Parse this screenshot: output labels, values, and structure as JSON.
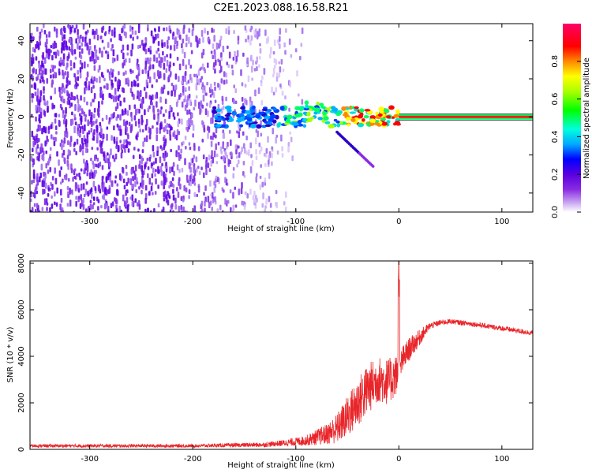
{
  "title": "C2E1.2023.088.16.58.R21",
  "chart_data": [
    {
      "type": "heatmap",
      "xlabel": "Height of straight line (km)",
      "ylabel": "Frequency (Hz)",
      "xlim": [
        -358,
        130
      ],
      "ylim": [
        -50,
        49
      ],
      "xticks": [
        -300,
        -200,
        -100,
        0,
        100
      ],
      "yticks": [
        -40,
        -20,
        0,
        20,
        40
      ],
      "colorbar": {
        "label": "Normalized spectral amplitude",
        "range": [
          0.0,
          1.0
        ],
        "ticks": [
          "0.0",
          "0.2",
          "0.4",
          "0.6",
          "0.8"
        ],
        "colors": [
          "#ffffff",
          "#c9a6f2",
          "#8a2be2",
          "#5a00e0",
          "#0000ff",
          "#00aaff",
          "#00ffdd",
          "#00ff00",
          "#aaff00",
          "#ffff00",
          "#ff8800",
          "#ff0000",
          "#ff0066"
        ]
      },
      "features": {
        "noise_region_x": [
          -358,
          -100
        ],
        "sparse_noise_x": [
          -100,
          -95
        ],
        "signal_start_x": -180,
        "signal_line_x": [
          0,
          130
        ],
        "signal_line_freq": 0,
        "tail": {
          "x": [
            -60,
            -25
          ],
          "freq": [
            -8,
            -26
          ]
        }
      }
    },
    {
      "type": "line",
      "xlabel": "Height of straight line (km)",
      "ylabel": "SNR (10 * v/v)",
      "xlim": [
        -358,
        130
      ],
      "ylim": [
        0,
        8100
      ],
      "xticks": [
        -300,
        -200,
        -100,
        0,
        100
      ],
      "yticks": [
        0,
        2000,
        4000,
        6000,
        8000
      ],
      "color": "#e8262a",
      "series_envelope": {
        "x": [
          -358,
          -300,
          -200,
          -130,
          -110,
          -90,
          -70,
          -60,
          -50,
          -40,
          -30,
          -20,
          -10,
          -3,
          0,
          3,
          10,
          20,
          30,
          40,
          50,
          70,
          100,
          130
        ],
        "mean": [
          150,
          150,
          150,
          200,
          280,
          380,
          650,
          900,
          1400,
          2000,
          2600,
          3000,
          2900,
          3200,
          3100,
          3800,
          4300,
          4800,
          5300,
          5450,
          5500,
          5400,
          5200,
          5000
        ],
        "jitter": [
          70,
          70,
          70,
          100,
          140,
          220,
          450,
          650,
          900,
          1100,
          1100,
          1000,
          1000,
          900,
          700,
          600,
          500,
          350,
          150,
          120,
          110,
          110,
          110,
          110
        ]
      },
      "spike": {
        "x": 0,
        "y": 8100
      }
    }
  ]
}
